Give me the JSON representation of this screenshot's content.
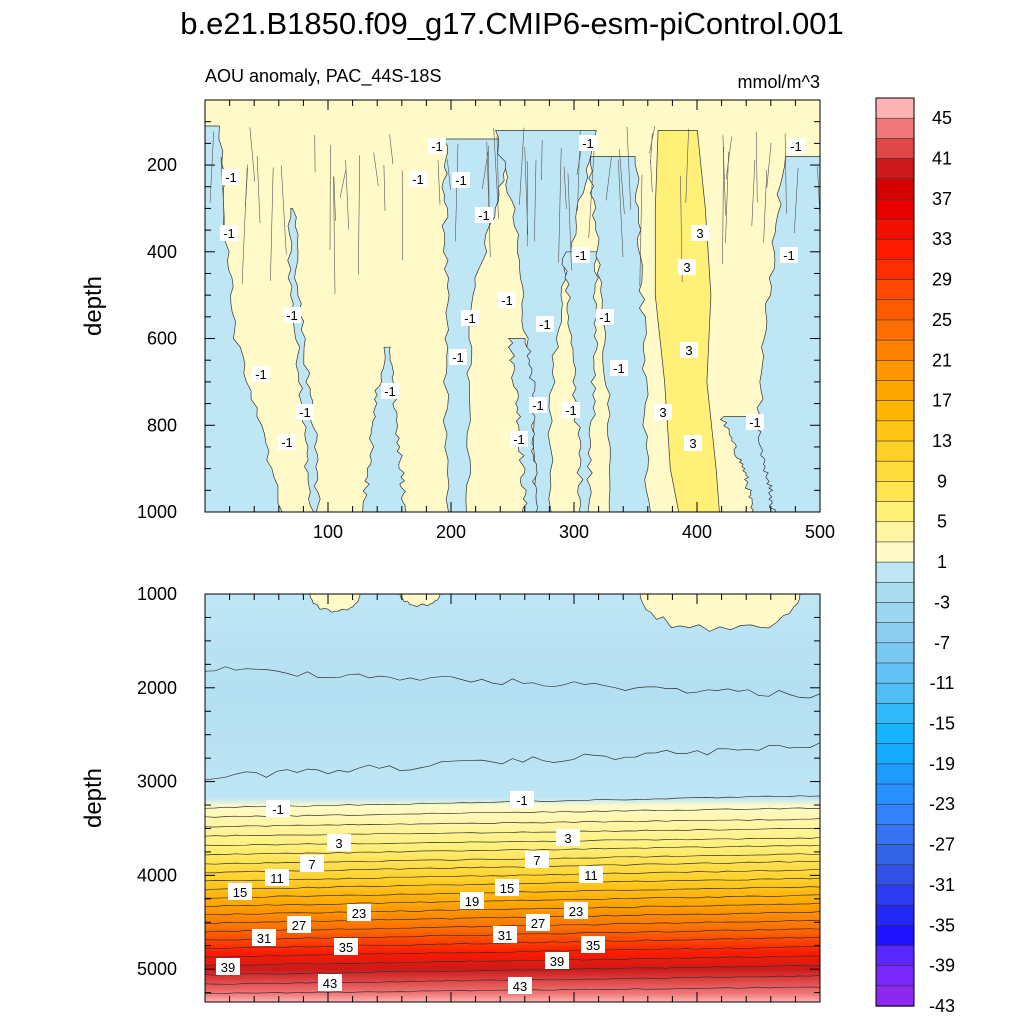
{
  "chart_data": {
    "type": "heatmap",
    "title": "b.e21.B1850.f09_g17.CMIP6-esm-piControl.001",
    "subtitle_left": "AOU anomaly, PAC_44S-18S",
    "subtitle_right": "mmol/m^3",
    "panels": [
      {
        "name": "upper",
        "ylabel": "depth",
        "xlim": [
          0,
          500
        ],
        "ylim": [
          1000,
          50
        ],
        "xticks": [
          "100",
          "200",
          "300",
          "400",
          "500"
        ],
        "yticks": [
          "200",
          "400",
          "600",
          "800",
          "1000"
        ],
        "contour_labels": [
          "-1",
          "-1",
          "-1",
          "-1",
          "-1",
          "-1",
          "-1",
          "-1",
          "-1",
          "-1",
          "-1",
          "-1",
          "-1",
          "-1",
          "-1",
          "-1",
          "-1",
          "-1",
          "-1",
          "-1",
          "-1",
          "-1",
          "-1",
          "-1",
          "-1",
          "3",
          "3",
          "3",
          "3",
          "3"
        ]
      },
      {
        "name": "lower",
        "ylabel": "depth",
        "xlim": [
          0,
          500
        ],
        "ylim": [
          5350,
          1000
        ],
        "yticks": [
          "1000",
          "2000",
          "3000",
          "4000",
          "5000"
        ],
        "contour_labels": [
          "-1",
          "-1",
          "3",
          "3",
          "7",
          "7",
          "11",
          "11",
          "15",
          "15",
          "19",
          "23",
          "23",
          "27",
          "27",
          "31",
          "31",
          "35",
          "35",
          "39",
          "39",
          "43",
          "43"
        ]
      }
    ],
    "colorbar": {
      "labels": [
        "45",
        "41",
        "37",
        "33",
        "29",
        "25",
        "21",
        "17",
        "13",
        "9",
        "5",
        "1",
        "-3",
        "-7",
        "-11",
        "-15",
        "-19",
        "-23",
        "-27",
        "-31",
        "-35",
        "-39",
        "-43"
      ],
      "colors": [
        "#ffb4b4",
        "#f07878",
        "#e04848",
        "#cc1a1a",
        "#d70000",
        "#e60000",
        "#f21000",
        "#ff1a00",
        "#ff2e00",
        "#ff4800",
        "#ff5a00",
        "#ff6e00",
        "#ff8200",
        "#ff9600",
        "#ffa500",
        "#ffb400",
        "#ffc414",
        "#ffd028",
        "#ffdb3c",
        "#ffe650",
        "#fff078",
        "#fff5a0",
        "#fffac8",
        "#bee6f5",
        "#aadcf0",
        "#9bd7f0",
        "#8ccdf0",
        "#78c8f0",
        "#64c3f5",
        "#50bef5",
        "#32b9fa",
        "#14b4ff",
        "#14aaff",
        "#1e9bff",
        "#2891ff",
        "#3282fa",
        "#3773f0",
        "#3264e6",
        "#3250e6",
        "#2d3cf0",
        "#2328f5",
        "#1e14ff",
        "#5a28ff",
        "#7828ff",
        "#8c28f0"
      ]
    }
  }
}
